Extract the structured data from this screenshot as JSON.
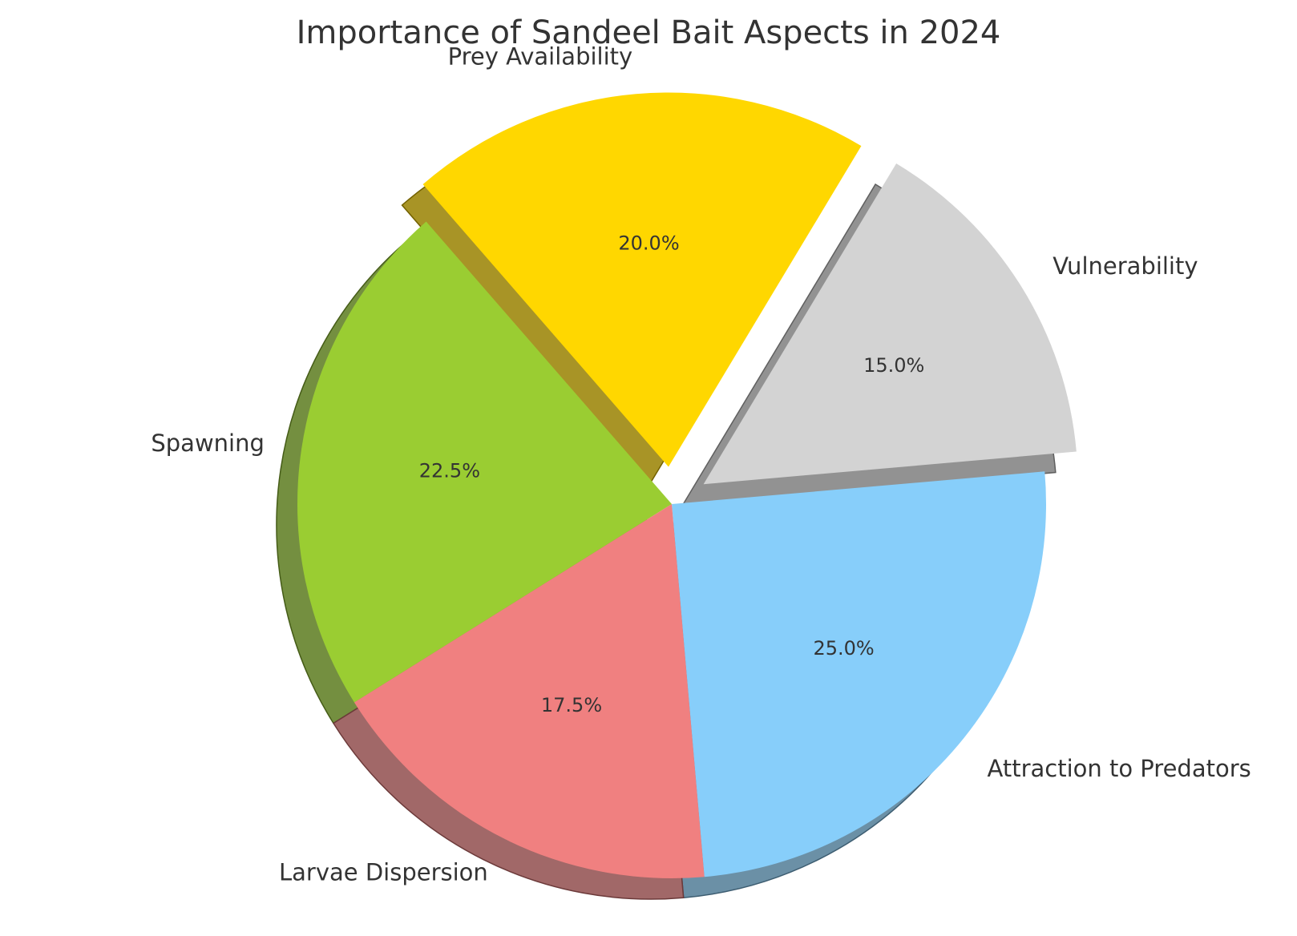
{
  "chart_data": {
    "type": "pie",
    "title": "Importance of Sandeel Bait Aspects in 2024",
    "categories": [
      "Attraction to Predators",
      "Vulnerability",
      "Prey Availability",
      "Spawning",
      "Larvae Dispersion"
    ],
    "values": [
      25.0,
      15.0,
      20.0,
      22.5,
      17.5
    ],
    "percent_labels": [
      "25.0%",
      "15.0%",
      "20.0%",
      "22.5%",
      "17.5%"
    ],
    "colors": [
      "#87CEFA",
      "#D3D3D3",
      "#FFD700",
      "#9ACD32",
      "#F08080"
    ],
    "exploded": [
      false,
      true,
      true,
      false,
      false
    ],
    "shadow": true,
    "legend": "none"
  }
}
